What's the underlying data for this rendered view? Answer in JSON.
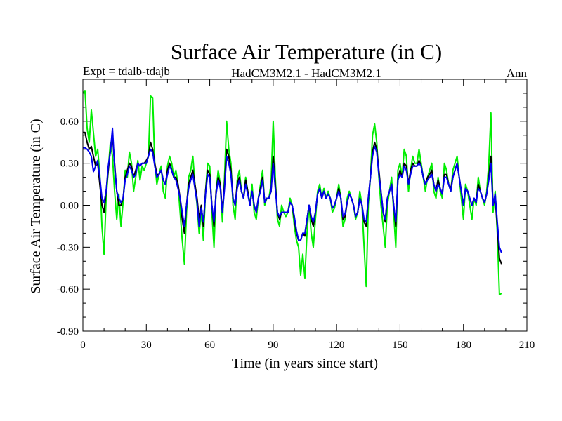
{
  "chart_data": {
    "type": "line",
    "title": "Surface Air Temperature (in C)",
    "subtitle_left": "Expt = tdalb-tdajb",
    "subtitle_center": "HadCM3M2.1 - HadCM3M2.1",
    "subtitle_right": "Ann",
    "xlabel": "Time (in years since start)",
    "ylabel": "Surface Air Temperature (in C)",
    "xlim": [
      0,
      210
    ],
    "ylim": [
      -0.9,
      0.9
    ],
    "xticks": [
      0,
      30,
      60,
      90,
      120,
      150,
      180,
      210
    ],
    "xtick_labels": [
      "0",
      "30",
      "60",
      "90",
      "120",
      "150",
      "180",
      "210"
    ],
    "yticks": [
      -0.9,
      -0.6,
      -0.3,
      0.0,
      0.3,
      0.6
    ],
    "ytick_labels": [
      "-0.90",
      "-0.60",
      "-0.30",
      "0.00",
      "0.30",
      "0.60"
    ],
    "series": [
      {
        "name": "series-green",
        "color": "#00ee00",
        "x": [
          0,
          1,
          2,
          3,
          4,
          5,
          6,
          7,
          8,
          9,
          10,
          11,
          12,
          13,
          14,
          15,
          16,
          17,
          18,
          19,
          20,
          21,
          22,
          23,
          24,
          25,
          26,
          27,
          28,
          29,
          30,
          31,
          32,
          33,
          34,
          35,
          36,
          37,
          38,
          39,
          40,
          41,
          42,
          43,
          44,
          45,
          46,
          47,
          48,
          49,
          50,
          51,
          52,
          53,
          54,
          55,
          56,
          57,
          58,
          59,
          60,
          61,
          62,
          63,
          64,
          65,
          66,
          67,
          68,
          69,
          70,
          71,
          72,
          73,
          74,
          75,
          76,
          77,
          78,
          79,
          80,
          81,
          82,
          83,
          84,
          85,
          86,
          87,
          88,
          89,
          90,
          91,
          92,
          93,
          94,
          95,
          96,
          97,
          98,
          99,
          100,
          101,
          102,
          103,
          104,
          105,
          106,
          107,
          108,
          109,
          110,
          111,
          112,
          113,
          114,
          115,
          116,
          117,
          118,
          119,
          120,
          121,
          122,
          123,
          124,
          125,
          126,
          127,
          128,
          129,
          130,
          131,
          132,
          133,
          134,
          135,
          136,
          137,
          138,
          139,
          140,
          141,
          142,
          143,
          144,
          145,
          146,
          147,
          148,
          149,
          150,
          151,
          152,
          153,
          154,
          155,
          156,
          157,
          158,
          159,
          160,
          161,
          162,
          163,
          164,
          165,
          166,
          167,
          168,
          169,
          170,
          171,
          172,
          173,
          174,
          175,
          176,
          177,
          178,
          179,
          180,
          181,
          182,
          183,
          184,
          185,
          186,
          187,
          188,
          189,
          190,
          191,
          192,
          193,
          194,
          195,
          196,
          197,
          198
        ],
        "y": [
          0.8,
          0.82,
          0.55,
          0.45,
          0.68,
          0.52,
          0.35,
          0.4,
          0.22,
          -0.15,
          -0.35,
          0.05,
          0.25,
          0.45,
          0.35,
          0.1,
          -0.1,
          0.08,
          -0.15,
          0.02,
          0.25,
          0.2,
          0.38,
          0.3,
          0.1,
          0.2,
          0.32,
          0.18,
          0.28,
          0.25,
          0.3,
          0.35,
          0.78,
          0.77,
          0.3,
          0.15,
          0.22,
          0.28,
          0.1,
          0.05,
          0.28,
          0.35,
          0.3,
          0.2,
          0.25,
          0.15,
          -0.05,
          -0.25,
          -0.42,
          -0.05,
          0.2,
          0.25,
          0.35,
          0.15,
          0.0,
          -0.2,
          -0.05,
          -0.25,
          0.1,
          0.3,
          0.28,
          -0.05,
          -0.3,
          0.1,
          0.25,
          0.15,
          -0.12,
          0.2,
          0.6,
          0.4,
          0.3,
          0.0,
          -0.1,
          0.18,
          0.25,
          0.1,
          0.05,
          0.2,
          0.1,
          0.0,
          0.15,
          -0.05,
          -0.1,
          0.05,
          0.15,
          0.25,
          0.0,
          0.05,
          0.05,
          0.15,
          0.6,
          0.2,
          -0.1,
          -0.15,
          0.0,
          -0.05,
          -0.08,
          -0.05,
          0.05,
          0.0,
          -0.15,
          -0.25,
          -0.3,
          -0.5,
          -0.35,
          -0.52,
          -0.2,
          0.0,
          -0.2,
          -0.3,
          -0.1,
          0.1,
          0.15,
          0.05,
          0.12,
          0.05,
          0.1,
          0.05,
          -0.05,
          -0.02,
          0.05,
          0.15,
          0.05,
          -0.15,
          -0.1,
          0.05,
          0.1,
          0.05,
          0.0,
          -0.1,
          -0.05,
          0.1,
          0.0,
          -0.3,
          -0.58,
          0.0,
          0.2,
          0.5,
          0.58,
          0.45,
          0.2,
          0.0,
          -0.15,
          -0.3,
          0.0,
          0.1,
          0.2,
          -0.05,
          -0.3,
          0.25,
          0.3,
          0.2,
          0.4,
          0.35,
          0.1,
          0.25,
          0.35,
          0.3,
          0.3,
          0.4,
          0.3,
          0.2,
          0.1,
          0.2,
          0.25,
          0.3,
          0.1,
          0.05,
          0.2,
          0.1,
          0.05,
          0.3,
          0.25,
          0.15,
          0.1,
          0.25,
          0.3,
          0.35,
          0.2,
          0.05,
          -0.1,
          0.15,
          0.1,
          0.0,
          -0.1,
          0.05,
          0.0,
          0.2,
          0.1,
          0.05,
          0.0,
          0.1,
          0.3,
          0.66,
          -0.05,
          0.1,
          -0.2,
          -0.64,
          -0.63
        ]
      },
      {
        "name": "series-black",
        "color": "#000000",
        "x": [
          0,
          1,
          2,
          3,
          4,
          5,
          6,
          7,
          8,
          9,
          10,
          11,
          12,
          13,
          14,
          15,
          16,
          17,
          18,
          19,
          20,
          21,
          22,
          23,
          24,
          25,
          26,
          27,
          28,
          29,
          30,
          31,
          32,
          33,
          34,
          35,
          36,
          37,
          38,
          39,
          40,
          41,
          42,
          43,
          44,
          45,
          46,
          47,
          48,
          49,
          50,
          51,
          52,
          53,
          54,
          55,
          56,
          57,
          58,
          59,
          60,
          61,
          62,
          63,
          64,
          65,
          66,
          67,
          68,
          69,
          70,
          71,
          72,
          73,
          74,
          75,
          76,
          77,
          78,
          79,
          80,
          81,
          82,
          83,
          84,
          85,
          86,
          87,
          88,
          89,
          90,
          91,
          92,
          93,
          94,
          95,
          96,
          97,
          98,
          99,
          100,
          101,
          102,
          103,
          104,
          105,
          106,
          107,
          108,
          109,
          110,
          111,
          112,
          113,
          114,
          115,
          116,
          117,
          118,
          119,
          120,
          121,
          122,
          123,
          124,
          125,
          126,
          127,
          128,
          129,
          130,
          131,
          132,
          133,
          134,
          135,
          136,
          137,
          138,
          139,
          140,
          141,
          142,
          143,
          144,
          145,
          146,
          147,
          148,
          149,
          150,
          151,
          152,
          153,
          154,
          155,
          156,
          157,
          158,
          159,
          160,
          161,
          162,
          163,
          164,
          165,
          166,
          167,
          168,
          169,
          170,
          171,
          172,
          173,
          174,
          175,
          176,
          177,
          178,
          179,
          180,
          181,
          182,
          183,
          184,
          185,
          186,
          187,
          188,
          189,
          190,
          191,
          192,
          193,
          194,
          195,
          196,
          197,
          198
        ],
        "y": [
          0.52,
          0.52,
          0.45,
          0.4,
          0.42,
          0.35,
          0.28,
          0.3,
          0.15,
          0.0,
          -0.05,
          0.1,
          0.25,
          0.4,
          0.5,
          0.3,
          0.1,
          0.0,
          0.0,
          0.05,
          0.2,
          0.25,
          0.3,
          0.28,
          0.2,
          0.25,
          0.3,
          0.28,
          0.3,
          0.3,
          0.32,
          0.35,
          0.45,
          0.4,
          0.3,
          0.22,
          0.22,
          0.25,
          0.18,
          0.15,
          0.25,
          0.3,
          0.25,
          0.2,
          0.2,
          0.15,
          0.05,
          -0.1,
          -0.2,
          0.0,
          0.15,
          0.2,
          0.25,
          0.15,
          0.05,
          -0.1,
          0.0,
          -0.15,
          0.1,
          0.25,
          0.22,
          0.0,
          -0.15,
          0.1,
          0.2,
          0.15,
          -0.05,
          0.15,
          0.4,
          0.35,
          0.25,
          0.05,
          0.0,
          0.15,
          0.2,
          0.1,
          0.05,
          0.18,
          0.1,
          0.0,
          0.1,
          0.0,
          -0.05,
          0.05,
          0.12,
          0.2,
          0.02,
          0.05,
          0.05,
          0.1,
          0.35,
          0.15,
          -0.05,
          -0.1,
          -0.05,
          -0.05,
          -0.05,
          -0.05,
          0.02,
          0.0,
          -0.1,
          -0.2,
          -0.25,
          -0.25,
          -0.2,
          -0.22,
          -0.1,
          0.0,
          -0.1,
          -0.15,
          -0.05,
          0.08,
          0.12,
          0.05,
          0.1,
          0.05,
          0.08,
          0.05,
          -0.02,
          0.0,
          0.05,
          0.12,
          0.05,
          -0.1,
          -0.08,
          0.02,
          0.08,
          0.05,
          0.0,
          -0.08,
          -0.05,
          0.05,
          0.0,
          -0.12,
          -0.15,
          0.05,
          0.2,
          0.38,
          0.45,
          0.4,
          0.25,
          0.1,
          -0.05,
          -0.12,
          0.05,
          0.1,
          0.15,
          0.0,
          -0.15,
          0.18,
          0.25,
          0.2,
          0.3,
          0.28,
          0.15,
          0.25,
          0.3,
          0.28,
          0.28,
          0.32,
          0.28,
          0.2,
          0.15,
          0.2,
          0.22,
          0.25,
          0.15,
          0.1,
          0.18,
          0.12,
          0.08,
          0.22,
          0.22,
          0.15,
          0.12,
          0.2,
          0.25,
          0.3,
          0.2,
          0.1,
          0.0,
          0.12,
          0.1,
          0.05,
          0.0,
          0.05,
          0.02,
          0.15,
          0.1,
          0.05,
          0.02,
          0.08,
          0.2,
          0.35,
          0.0,
          0.05,
          -0.15,
          -0.38,
          -0.42
        ]
      },
      {
        "name": "series-blue",
        "color": "#0000ee",
        "x": [
          0,
          1,
          2,
          3,
          4,
          5,
          6,
          7,
          8,
          9,
          10,
          11,
          12,
          13,
          14,
          15,
          16,
          17,
          18,
          19,
          20,
          21,
          22,
          23,
          24,
          25,
          26,
          27,
          28,
          29,
          30,
          31,
          32,
          33,
          34,
          35,
          36,
          37,
          38,
          39,
          40,
          41,
          42,
          43,
          44,
          45,
          46,
          47,
          48,
          49,
          50,
          51,
          52,
          53,
          54,
          55,
          56,
          57,
          58,
          59,
          60,
          61,
          62,
          63,
          64,
          65,
          66,
          67,
          68,
          69,
          70,
          71,
          72,
          73,
          74,
          75,
          76,
          77,
          78,
          79,
          80,
          81,
          82,
          83,
          84,
          85,
          86,
          87,
          88,
          89,
          90,
          91,
          92,
          93,
          94,
          95,
          96,
          97,
          98,
          99,
          100,
          101,
          102,
          103,
          104,
          105,
          106,
          107,
          108,
          109,
          110,
          111,
          112,
          113,
          114,
          115,
          116,
          117,
          118,
          119,
          120,
          121,
          122,
          123,
          124,
          125,
          126,
          127,
          128,
          129,
          130,
          131,
          132,
          133,
          134,
          135,
          136,
          137,
          138,
          139,
          140,
          141,
          142,
          143,
          144,
          145,
          146,
          147,
          148,
          149,
          150,
          151,
          152,
          153,
          154,
          155,
          156,
          157,
          158,
          159,
          160,
          161,
          162,
          163,
          164,
          165,
          166,
          167,
          168,
          169,
          170,
          171,
          172,
          173,
          174,
          175,
          176,
          177,
          178,
          179,
          180,
          181,
          182,
          183,
          184,
          185,
          186,
          187,
          188,
          189,
          190,
          191,
          192,
          193,
          194,
          195,
          196,
          197,
          198
        ],
        "y": [
          0.41,
          0.41,
          0.4,
          0.38,
          0.35,
          0.24,
          0.28,
          0.32,
          0.2,
          0.05,
          0.02,
          0.1,
          0.28,
          0.38,
          0.55,
          0.28,
          0.1,
          0.05,
          0.02,
          0.05,
          0.18,
          0.22,
          0.28,
          0.25,
          0.2,
          0.22,
          0.3,
          0.28,
          0.3,
          0.3,
          0.3,
          0.35,
          0.4,
          0.38,
          0.28,
          0.2,
          0.22,
          0.25,
          0.18,
          0.15,
          0.22,
          0.28,
          0.25,
          0.2,
          0.18,
          0.12,
          0.05,
          -0.05,
          -0.15,
          0.0,
          0.12,
          0.18,
          0.22,
          0.12,
          0.02,
          -0.15,
          -0.02,
          -0.12,
          0.08,
          0.22,
          0.2,
          0.0,
          -0.12,
          0.08,
          0.18,
          0.12,
          -0.05,
          0.12,
          0.35,
          0.3,
          0.22,
          0.05,
          0.0,
          0.12,
          0.18,
          0.1,
          0.05,
          0.15,
          0.08,
          0.0,
          0.1,
          0.0,
          -0.05,
          0.05,
          0.1,
          0.18,
          0.02,
          0.05,
          0.05,
          0.1,
          0.3,
          0.12,
          -0.05,
          -0.08,
          -0.05,
          -0.05,
          -0.05,
          -0.05,
          0.02,
          0.0,
          -0.08,
          -0.18,
          -0.25,
          -0.25,
          -0.2,
          -0.2,
          -0.1,
          0.0,
          -0.08,
          -0.12,
          -0.05,
          0.08,
          0.12,
          0.05,
          0.1,
          0.05,
          0.08,
          0.05,
          -0.02,
          0.0,
          0.05,
          0.1,
          0.05,
          -0.08,
          -0.06,
          0.02,
          0.08,
          0.05,
          0.0,
          -0.08,
          -0.05,
          0.05,
          0.0,
          -0.1,
          -0.12,
          0.05,
          0.2,
          0.35,
          0.42,
          0.38,
          0.22,
          0.1,
          -0.05,
          -0.1,
          0.05,
          0.1,
          0.15,
          0.0,
          -0.12,
          0.18,
          0.22,
          0.2,
          0.28,
          0.25,
          0.15,
          0.22,
          0.28,
          0.28,
          0.28,
          0.3,
          0.28,
          0.2,
          0.15,
          0.18,
          0.2,
          0.22,
          0.15,
          0.1,
          0.15,
          0.12,
          0.08,
          0.2,
          0.2,
          0.15,
          0.1,
          0.2,
          0.25,
          0.3,
          0.2,
          0.1,
          0.0,
          0.12,
          0.1,
          0.05,
          0.0,
          0.05,
          0.02,
          0.12,
          0.1,
          0.05,
          0.02,
          0.08,
          0.18,
          0.3,
          0.0,
          0.08,
          -0.12,
          -0.3,
          -0.34
        ]
      }
    ]
  }
}
